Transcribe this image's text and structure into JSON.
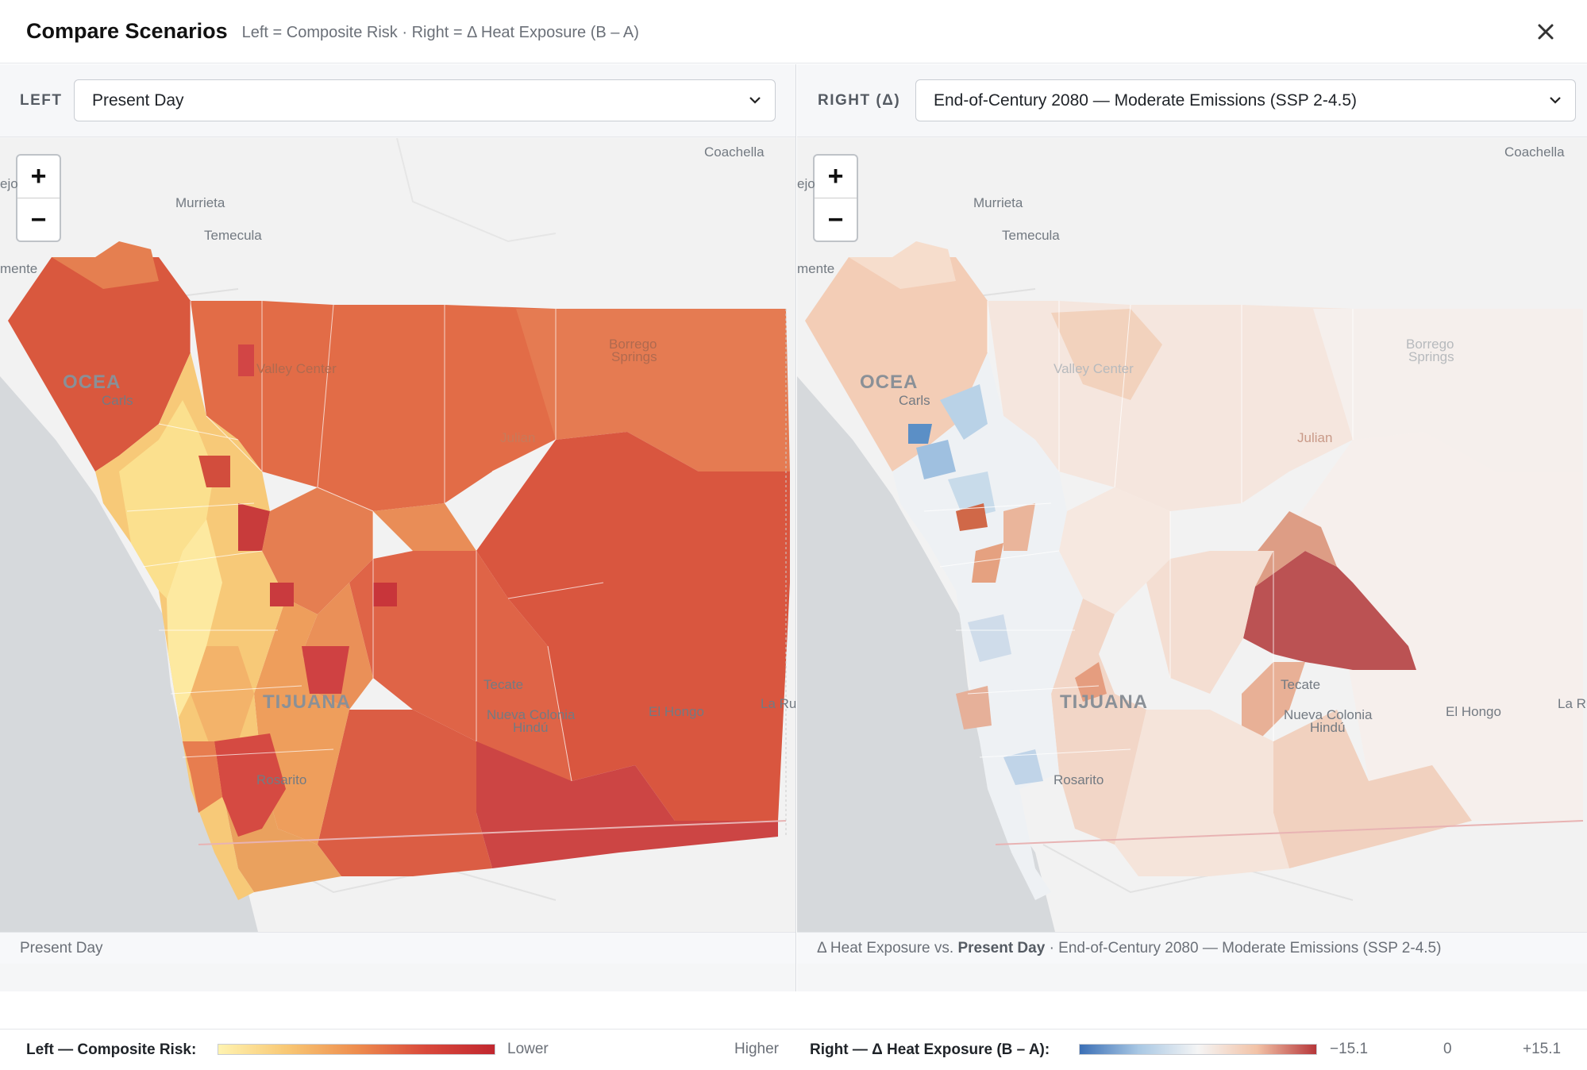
{
  "header": {
    "title": "Compare Scenarios",
    "subtitle": "Left = Composite Risk · Right = Δ Heat Exposure (B – A)",
    "close_icon": "close-icon"
  },
  "left": {
    "selector_label": "LEFT",
    "selected": "Present Day",
    "caption": "Present Day"
  },
  "right": {
    "selector_label": "RIGHT (Δ)",
    "selected": "End-of-Century 2080 — Moderate Emissions (SSP 2-4.5)",
    "caption_prefix": "Δ Heat Exposure vs. ",
    "caption_bold": "Present Day",
    "caption_suffix": " · End-of-Century 2080 — Moderate Emissions (SSP 2-4.5)"
  },
  "zoom": {
    "in": "+",
    "out": "−"
  },
  "map_labels": {
    "coachella": "Coachella",
    "murrieta": "Murrieta",
    "temecula": "Temecula",
    "oceanside": "OCEA",
    "carlsbad": "Carls",
    "tijuana": "TIJUANA",
    "tecate": "Tecate",
    "nueva_colonia": "Nueva Colonia",
    "hindu": "Hindú",
    "el_hongo": "El Hongo",
    "la_rumorosa": "La Ru",
    "rosarito": "Rosarito",
    "menifee": "mente",
    "lake_elsinore": "ejo",
    "borrego": "Borrego",
    "springs": "Springs",
    "valley_center": "Valley Center",
    "julian": "Julian"
  },
  "legend": {
    "left_title": "Left — Composite Risk:",
    "left_low": "Lower",
    "left_high": "Higher",
    "right_title": "Right — Δ Heat Exposure (B – A):",
    "right_min": "−15.1",
    "right_mid": "0",
    "right_max": "+15.1"
  },
  "colors": {
    "risk_low": "#fff3b0",
    "risk_mid": "#f0a55a",
    "risk_high": "#c8353a",
    "delta_neg": "#3b6fb6",
    "delta_zero": "#f5f5f5",
    "delta_pos": "#b6363a",
    "ocean": "#d6d9dc",
    "land": "#f2f2f2"
  }
}
